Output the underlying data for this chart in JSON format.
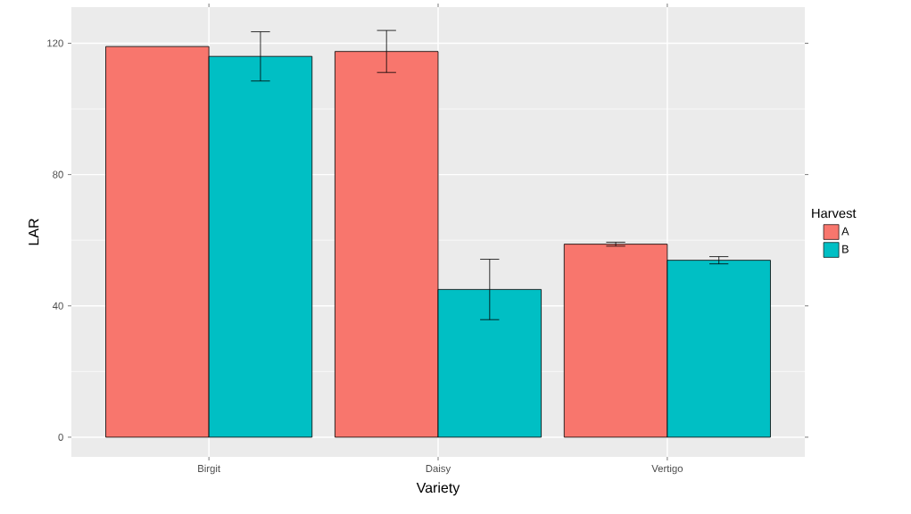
{
  "chart_data": {
    "type": "bar",
    "xlabel": "Variety",
    "ylabel": "LAR",
    "legend_title": "Harvest",
    "categories": [
      "Birgit",
      "Daisy",
      "Vertigo"
    ],
    "series": [
      {
        "name": "A",
        "color": "#f8766d",
        "values": [
          119,
          117.5,
          58.8
        ],
        "errors": [
          null,
          6.4,
          0.6
        ]
      },
      {
        "name": "B",
        "color": "#00bfc4",
        "values": [
          116,
          45,
          53.9
        ],
        "errors": [
          7.5,
          9.2,
          1.1
        ]
      }
    ],
    "ylim": [
      -6,
      131
    ],
    "yticks": [
      0,
      40,
      80,
      120
    ],
    "grid": true,
    "legend": "right"
  }
}
